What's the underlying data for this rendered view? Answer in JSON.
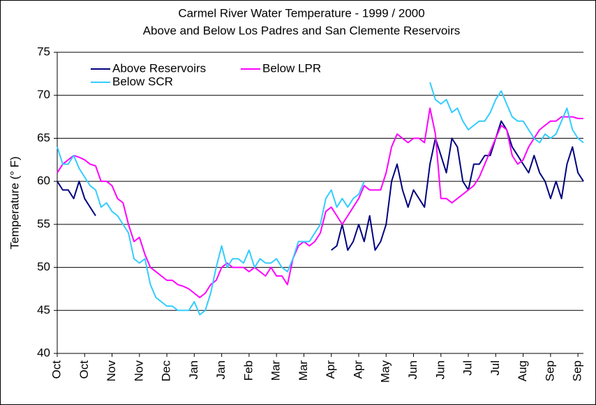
{
  "chart_data": {
    "type": "line",
    "title": "Carmel River Water Temperature - 1999 / 2000",
    "subtitle": "Above and Below Los Padres and San Clemente Reservoirs",
    "y_label": "Temperature (° F)",
    "categories": [
      "Oct",
      null,
      null,
      null,
      null,
      "Oct",
      null,
      null,
      null,
      null,
      "Nov",
      null,
      null,
      null,
      null,
      "Nov",
      null,
      null,
      null,
      null,
      "Dec",
      null,
      null,
      null,
      null,
      "Jan",
      null,
      null,
      null,
      null,
      "Jan",
      null,
      null,
      null,
      null,
      "Feb",
      null,
      null,
      null,
      null,
      "Mar",
      null,
      null,
      null,
      null,
      "Mar",
      null,
      null,
      null,
      null,
      "Apr",
      null,
      null,
      null,
      null,
      "Apr",
      null,
      null,
      null,
      null,
      "May",
      null,
      null,
      null,
      null,
      "Jun",
      null,
      null,
      null,
      null,
      "Jun",
      null,
      null,
      null,
      null,
      "Jul",
      null,
      null,
      null,
      null,
      "Jul",
      null,
      null,
      null,
      null,
      "Aug",
      null,
      null,
      null,
      null,
      "Sep",
      null,
      null,
      null,
      null,
      "Sep",
      null
    ],
    "series": [
      {
        "name": "Above Reservoirs",
        "color": "#000080",
        "values": [
          60,
          59,
          59,
          58,
          60,
          58,
          57,
          56,
          null,
          null,
          null,
          null,
          null,
          null,
          null,
          null,
          null,
          null,
          null,
          null,
          null,
          null,
          null,
          null,
          null,
          null,
          null,
          null,
          null,
          null,
          null,
          null,
          null,
          null,
          null,
          null,
          null,
          null,
          null,
          null,
          null,
          null,
          null,
          null,
          null,
          null,
          null,
          null,
          null,
          null,
          52,
          52.5,
          55,
          52,
          53,
          55,
          53,
          56,
          52,
          53,
          55,
          60,
          62,
          59,
          57,
          59,
          58,
          57,
          62,
          65,
          63,
          61,
          65,
          64,
          60,
          59,
          62,
          62,
          63,
          63,
          65,
          67,
          66,
          64,
          63,
          62,
          61,
          63,
          61,
          60,
          58,
          60,
          58,
          62,
          64,
          61,
          60
        ]
      },
      {
        "name": "Below LPR",
        "color": "#ff00ff",
        "values": [
          61,
          62,
          62.5,
          63,
          62.8,
          62.5,
          62,
          61.8,
          60,
          60,
          59.5,
          58,
          57.5,
          55,
          53,
          53.5,
          51.5,
          50,
          49.5,
          49,
          48.5,
          48.5,
          48,
          47.8,
          47.5,
          47,
          46.5,
          47,
          48,
          48.5,
          50,
          50.5,
          50,
          50,
          50,
          49.5,
          50,
          49.5,
          49,
          50,
          49,
          49,
          48,
          51,
          52.5,
          53,
          52.5,
          53,
          54,
          56.5,
          57,
          56,
          55,
          56,
          57,
          58,
          59.5,
          59,
          59,
          59,
          61,
          64,
          65.5,
          65,
          64.5,
          65,
          65,
          64.5,
          68.5,
          65.5,
          58,
          58,
          57.5,
          58,
          58.5,
          59,
          59.5,
          60.5,
          62,
          63.5,
          65,
          66.5,
          66,
          63,
          62,
          62.5,
          64,
          65,
          66,
          66.5,
          67,
          67,
          67.5,
          67.5,
          67.5,
          67.3,
          67.3
        ]
      },
      {
        "name": "Below SCR",
        "color": "#33ccff",
        "values": [
          64,
          62,
          62,
          63,
          61.5,
          60.5,
          59.5,
          59,
          57,
          57.5,
          56.5,
          56,
          55,
          54,
          51,
          50.5,
          51,
          48,
          46.5,
          46,
          45.5,
          45.5,
          45,
          45,
          45,
          46,
          44.5,
          45,
          47,
          50,
          52.5,
          50,
          51,
          51,
          50.5,
          52,
          50,
          51,
          50.5,
          50.5,
          51,
          50,
          49.5,
          51,
          53,
          53,
          53,
          54,
          55,
          58,
          59,
          57,
          58,
          57,
          58,
          58.5,
          60,
          null,
          null,
          null,
          null,
          null,
          null,
          null,
          null,
          null,
          null,
          null,
          71.5,
          69.5,
          69,
          69.5,
          68,
          68.5,
          67,
          66,
          66.5,
          67,
          67,
          68,
          69.5,
          70.5,
          69,
          67.5,
          67,
          67,
          66,
          65,
          64.5,
          65.5,
          65,
          65.5,
          67,
          68.5,
          66,
          65,
          64.5
        ]
      }
    ],
    "ylim": [
      40,
      75
    ],
    "yticks": [
      40,
      45,
      50,
      55,
      60,
      65,
      70,
      75
    ],
    "grid": true,
    "legend": "top-left"
  }
}
